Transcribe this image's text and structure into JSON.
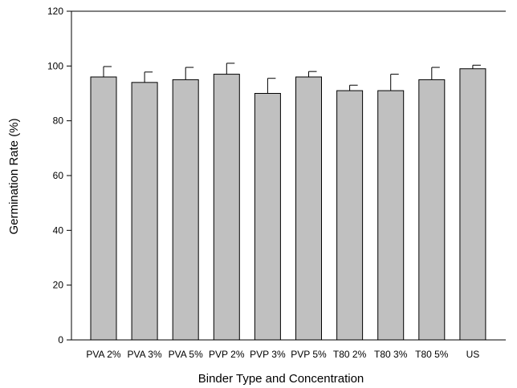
{
  "chart_data": {
    "type": "bar",
    "title": "",
    "xlabel": "Binder Type and Concentration",
    "ylabel": "Germination Rate (%)",
    "ylim": [
      0,
      120
    ],
    "yticks": [
      0,
      20,
      40,
      60,
      80,
      100,
      120
    ],
    "grid": false,
    "categories": [
      "PVA 2%",
      "PVA 3%",
      "PVA 5%",
      "PVP 2%",
      "PVP 3%",
      "PVP 5%",
      "T80 2%",
      "T80 3%",
      "T80 5%",
      "US"
    ],
    "values": [
      96,
      94,
      95,
      97,
      90,
      96,
      91,
      91,
      95,
      99
    ],
    "errors": [
      3.8,
      3.8,
      4.5,
      4.0,
      5.5,
      2.0,
      2.0,
      6.0,
      4.5,
      1.3
    ],
    "bar_color": "#c0c0c0",
    "edge_color": "#000000"
  }
}
